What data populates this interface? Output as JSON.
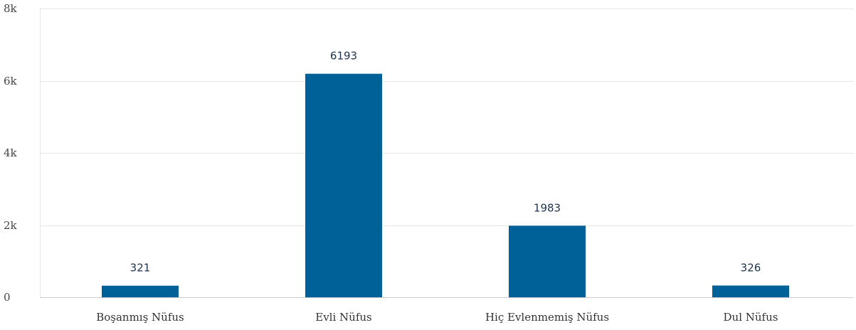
{
  "chart_data": {
    "type": "bar",
    "categories": [
      "Boşanmış Nüfus",
      "Evli Nüfus",
      "Hiç Evlenmemiş Nüfus",
      "Dul Nüfus"
    ],
    "values": [
      321,
      6193,
      1983,
      326
    ],
    "data_labels": [
      "321",
      "6193",
      "1983",
      "326"
    ],
    "y_ticks": [
      0,
      2000,
      4000,
      6000,
      8000
    ],
    "y_tick_labels": [
      "0",
      "2k",
      "4k",
      "6k",
      "8k"
    ],
    "ylim": [
      0,
      8000
    ],
    "bar_color": "#006199",
    "grid": true,
    "legend": false,
    "title": "",
    "xlabel": "",
    "ylabel": ""
  }
}
